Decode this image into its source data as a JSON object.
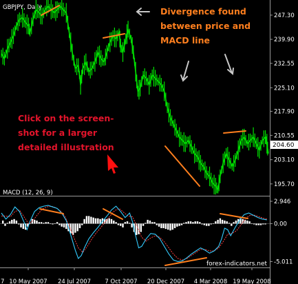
{
  "chart_data": [
    {
      "type": "line",
      "title": "GBPJPY, Daily",
      "series": [
        {
          "name": "GBPJPY",
          "color": "#00e000"
        }
      ],
      "ylim": [
        192.5,
        251.5
      ],
      "y_ticks": [
        "247.30",
        "239.90",
        "232.55",
        "225.10",
        "217.90",
        "210.55",
        "203.10",
        "195.70"
      ],
      "last_price": "204.60",
      "price_path": [
        [
          0,
          235.5
        ],
        [
          4,
          234
        ],
        [
          8,
          237
        ],
        [
          12,
          239
        ],
        [
          16,
          241
        ],
        [
          20,
          244
        ],
        [
          24,
          246
        ],
        [
          28,
          246.5
        ],
        [
          32,
          245
        ],
        [
          36,
          244
        ],
        [
          38,
          242
        ],
        [
          42,
          246
        ],
        [
          46,
          249
        ],
        [
          50,
          248
        ],
        [
          54,
          247
        ],
        [
          58,
          249
        ],
        [
          62,
          250
        ],
        [
          66,
          249
        ],
        [
          70,
          248
        ],
        [
          74,
          249
        ],
        [
          78,
          250
        ],
        [
          82,
          249
        ],
        [
          86,
          248
        ],
        [
          90,
          242
        ],
        [
          94,
          236
        ],
        [
          98,
          231
        ],
        [
          102,
          232
        ],
        [
          105,
          226
        ],
        [
          108,
          231
        ],
        [
          112,
          233
        ],
        [
          116,
          230
        ],
        [
          120,
          231
        ],
        [
          124,
          233
        ],
        [
          128,
          236
        ],
        [
          132,
          234
        ],
        [
          136,
          233
        ],
        [
          140,
          236
        ],
        [
          144,
          239
        ],
        [
          148,
          241
        ],
        [
          152,
          240
        ],
        [
          156,
          242
        ],
        [
          158,
          238
        ],
        [
          161,
          236
        ],
        [
          165,
          240
        ],
        [
          168,
          243
        ],
        [
          172,
          240
        ],
        [
          175,
          236
        ],
        [
          178,
          230
        ],
        [
          181,
          224
        ],
        [
          184,
          225
        ],
        [
          188,
          229
        ],
        [
          192,
          228
        ],
        [
          196,
          226
        ],
        [
          200,
          229
        ],
        [
          204,
          228
        ],
        [
          208,
          227
        ],
        [
          212,
          226
        ],
        [
          216,
          224
        ],
        [
          220,
          219
        ],
        [
          224,
          216
        ],
        [
          228,
          214
        ],
        [
          232,
          212
        ],
        [
          236,
          210
        ],
        [
          240,
          209
        ],
        [
          244,
          208
        ],
        [
          248,
          209
        ],
        [
          252,
          207
        ],
        [
          256,
          205
        ],
        [
          260,
          204
        ],
        [
          264,
          202
        ],
        [
          268,
          201
        ],
        [
          272,
          199
        ],
        [
          276,
          198
        ],
        [
          280,
          196
        ],
        [
          284,
          195
        ],
        [
          287,
          194
        ],
        [
          290,
          198
        ],
        [
          294,
          202
        ],
        [
          298,
          205
        ],
        [
          302,
          203
        ],
        [
          306,
          201
        ],
        [
          310,
          203
        ],
        [
          314,
          206
        ],
        [
          318,
          209
        ],
        [
          322,
          210
        ],
        [
          326,
          208
        ],
        [
          330,
          209
        ],
        [
          334,
          210
        ],
        [
          338,
          208
        ],
        [
          342,
          206
        ],
        [
          346,
          209
        ],
        [
          350,
          210
        ],
        [
          352,
          208
        ],
        [
          354,
          205
        ]
      ]
    },
    {
      "type": "line",
      "title": "MACD (12, 26, 9)",
      "series": [
        {
          "name": "MACD",
          "color": "#33ccff"
        },
        {
          "name": "Signal",
          "color": "#ff4040"
        },
        {
          "name": "Histogram",
          "color": "#ffffff"
        }
      ],
      "ylim": [
        -5.6,
        3.4
      ],
      "y_ticks": [
        "2.946",
        "0.00",
        "-5.011"
      ],
      "macd_path": [
        [
          0,
          1.4
        ],
        [
          6,
          0.6
        ],
        [
          12,
          1.2
        ],
        [
          18,
          2.2
        ],
        [
          24,
          1.6
        ],
        [
          30,
          0.2
        ],
        [
          34,
          -0.8
        ],
        [
          38,
          0.3
        ],
        [
          44,
          1.6
        ],
        [
          50,
          2.1
        ],
        [
          56,
          2.3
        ],
        [
          62,
          2.4
        ],
        [
          68,
          2.2
        ],
        [
          74,
          2.0
        ],
        [
          80,
          1.4
        ],
        [
          86,
          0.4
        ],
        [
          92,
          -1.5
        ],
        [
          98,
          -3.5
        ],
        [
          102,
          -4.6
        ],
        [
          106,
          -4.2
        ],
        [
          110,
          -3.2
        ],
        [
          116,
          -2.0
        ],
        [
          122,
          -1.2
        ],
        [
          128,
          -0.5
        ],
        [
          134,
          0.3
        ],
        [
          140,
          1.0
        ],
        [
          146,
          1.8
        ],
        [
          152,
          2.3
        ],
        [
          158,
          1.6
        ],
        [
          164,
          0.8
        ],
        [
          170,
          1.4
        ],
        [
          174,
          0.2
        ],
        [
          178,
          -1.6
        ],
        [
          182,
          -3.2
        ],
        [
          186,
          -3.0
        ],
        [
          192,
          -2.0
        ],
        [
          198,
          -1.3
        ],
        [
          204,
          -1.4
        ],
        [
          210,
          -2.0
        ],
        [
          216,
          -3.0
        ],
        [
          222,
          -4.0
        ],
        [
          228,
          -4.8
        ],
        [
          234,
          -5.0
        ],
        [
          240,
          -4.9
        ],
        [
          246,
          -4.5
        ],
        [
          252,
          -4.0
        ],
        [
          258,
          -3.6
        ],
        [
          264,
          -3.2
        ],
        [
          270,
          -3.5
        ],
        [
          276,
          -3.9
        ],
        [
          282,
          -3.6
        ],
        [
          288,
          -3.0
        ],
        [
          292,
          -2.0
        ],
        [
          296,
          -0.6
        ],
        [
          300,
          -0.8
        ],
        [
          304,
          -1.6
        ],
        [
          310,
          -0.5
        ],
        [
          316,
          0.5
        ],
        [
          322,
          1.2
        ],
        [
          328,
          1.4
        ],
        [
          334,
          1.1
        ],
        [
          340,
          0.8
        ],
        [
          346,
          0.6
        ],
        [
          352,
          0.5
        ]
      ],
      "signal_path": [
        [
          0,
          1.0
        ],
        [
          6,
          1.0
        ],
        [
          12,
          0.9
        ],
        [
          18,
          1.6
        ],
        [
          24,
          1.8
        ],
        [
          30,
          0.9
        ],
        [
          36,
          0.0
        ],
        [
          42,
          0.4
        ],
        [
          48,
          1.2
        ],
        [
          54,
          1.9
        ],
        [
          60,
          2.2
        ],
        [
          66,
          2.3
        ],
        [
          72,
          2.1
        ],
        [
          78,
          1.7
        ],
        [
          84,
          1.0
        ],
        [
          90,
          -0.3
        ],
        [
          96,
          -1.8
        ],
        [
          102,
          -3.2
        ],
        [
          108,
          -3.8
        ],
        [
          114,
          -3.0
        ],
        [
          120,
          -2.0
        ],
        [
          126,
          -1.2
        ],
        [
          132,
          -0.5
        ],
        [
          138,
          0.3
        ],
        [
          144,
          1.0
        ],
        [
          150,
          1.7
        ],
        [
          156,
          2.0
        ],
        [
          162,
          1.5
        ],
        [
          168,
          1.0
        ],
        [
          174,
          0.9
        ],
        [
          180,
          -0.4
        ],
        [
          186,
          -1.8
        ],
        [
          192,
          -2.3
        ],
        [
          198,
          -1.9
        ],
        [
          204,
          -1.6
        ],
        [
          210,
          -1.8
        ],
        [
          216,
          -2.4
        ],
        [
          222,
          -3.2
        ],
        [
          228,
          -4.0
        ],
        [
          234,
          -4.6
        ],
        [
          240,
          -4.8
        ],
        [
          246,
          -4.6
        ],
        [
          252,
          -4.2
        ],
        [
          258,
          -3.8
        ],
        [
          264,
          -3.4
        ],
        [
          270,
          -3.4
        ],
        [
          276,
          -3.6
        ],
        [
          282,
          -3.6
        ],
        [
          288,
          -3.2
        ],
        [
          294,
          -2.4
        ],
        [
          300,
          -1.4
        ],
        [
          306,
          -1.3
        ],
        [
          312,
          -0.9
        ],
        [
          318,
          -0.1
        ],
        [
          324,
          0.7
        ],
        [
          330,
          1.1
        ],
        [
          336,
          1.1
        ],
        [
          342,
          0.9
        ],
        [
          348,
          0.7
        ],
        [
          352,
          0.6
        ]
      ],
      "histogram": [
        [
          2,
          0.4
        ],
        [
          5,
          -0.3
        ],
        [
          8,
          0.1
        ],
        [
          11,
          0.3
        ],
        [
          14,
          0.5
        ],
        [
          17,
          0.6
        ],
        [
          20,
          0.4
        ],
        [
          23,
          -0.1
        ],
        [
          26,
          -0.5
        ],
        [
          29,
          -0.7
        ],
        [
          32,
          -0.8
        ],
        [
          35,
          -0.4
        ],
        [
          38,
          0.0
        ],
        [
          41,
          0.6
        ],
        [
          44,
          0.5
        ],
        [
          47,
          0.4
        ],
        [
          50,
          0.2
        ],
        [
          53,
          0.2
        ],
        [
          56,
          0.1
        ],
        [
          59,
          0.2
        ],
        [
          62,
          0.2
        ],
        [
          65,
          0.0
        ],
        [
          68,
          -0.1
        ],
        [
          71,
          0.0
        ],
        [
          74,
          0.2
        ],
        [
          77,
          -0.2
        ],
        [
          80,
          -0.4
        ],
        [
          83,
          -0.5
        ],
        [
          86,
          -0.7
        ],
        [
          89,
          -1.0
        ],
        [
          92,
          -1.3
        ],
        [
          95,
          -1.5
        ],
        [
          98,
          -1.2
        ],
        [
          101,
          -1.0
        ],
        [
          104,
          -0.6
        ],
        [
          107,
          -0.2
        ],
        [
          110,
          0.6
        ],
        [
          113,
          1.0
        ],
        [
          116,
          1.0
        ],
        [
          119,
          0.9
        ],
        [
          122,
          0.8
        ],
        [
          125,
          0.7
        ],
        [
          128,
          0.7
        ],
        [
          131,
          0.6
        ],
        [
          134,
          0.7
        ],
        [
          137,
          0.6
        ],
        [
          140,
          0.6
        ],
        [
          143,
          0.7
        ],
        [
          146,
          0.6
        ],
        [
          149,
          0.4
        ],
        [
          152,
          0.2
        ],
        [
          155,
          -0.2
        ],
        [
          158,
          -0.3
        ],
        [
          161,
          -0.5
        ],
        [
          164,
          0.2
        ],
        [
          167,
          0.3
        ],
        [
          170,
          0.1
        ],
        [
          173,
          -0.5
        ],
        [
          176,
          -1.1
        ],
        [
          179,
          -1.5
        ],
        [
          182,
          -1.4
        ],
        [
          185,
          -1.1
        ],
        [
          188,
          -0.3
        ],
        [
          191,
          0.1
        ],
        [
          194,
          0.5
        ],
        [
          197,
          0.4
        ],
        [
          200,
          0.2
        ],
        [
          203,
          0.2
        ],
        [
          206,
          -0.2
        ],
        [
          209,
          -0.4
        ],
        [
          212,
          -0.6
        ],
        [
          215,
          -0.6
        ],
        [
          218,
          -0.7
        ],
        [
          221,
          -0.8
        ],
        [
          224,
          -0.9
        ],
        [
          227,
          -0.8
        ],
        [
          230,
          -0.6
        ],
        [
          233,
          -0.4
        ],
        [
          236,
          -0.3
        ],
        [
          239,
          -0.2
        ],
        [
          242,
          0.1
        ],
        [
          245,
          0.2
        ],
        [
          248,
          0.3
        ],
        [
          251,
          0.3
        ],
        [
          254,
          0.2
        ],
        [
          257,
          0.3
        ],
        [
          260,
          0.3
        ],
        [
          263,
          0.2
        ],
        [
          266,
          -0.1
        ],
        [
          269,
          -0.2
        ],
        [
          272,
          -0.3
        ],
        [
          275,
          -0.3
        ],
        [
          278,
          -0.1
        ],
        [
          281,
          0.0
        ],
        [
          284,
          0.3
        ],
        [
          287,
          0.5
        ],
        [
          290,
          0.7
        ],
        [
          293,
          0.5
        ],
        [
          296,
          0.4
        ],
        [
          299,
          0.3
        ],
        [
          302,
          0.1
        ],
        [
          305,
          -0.3
        ],
        [
          308,
          0.2
        ],
        [
          311,
          0.4
        ],
        [
          314,
          0.6
        ],
        [
          317,
          0.7
        ],
        [
          320,
          0.6
        ],
        [
          323,
          0.5
        ],
        [
          326,
          0.4
        ],
        [
          329,
          0.3
        ],
        [
          332,
          0.0
        ],
        [
          335,
          -0.1
        ],
        [
          338,
          -0.2
        ],
        [
          341,
          -0.2
        ],
        [
          344,
          -0.2
        ],
        [
          347,
          -0.1
        ],
        [
          350,
          -0.1
        ]
      ]
    }
  ],
  "x_ticks": [
    "10 May 2007",
    "24 Jul 2007",
    "7 Oct 2007",
    "20 Dec 2007",
    "4 Mar 2008",
    "19 May 2008"
  ],
  "annotations": {
    "divergence_lines": [
      "Divergence found",
      "between price and",
      "MACD line"
    ],
    "click_lines": [
      "Click on the screen-",
      "shot for a larger",
      "detailed illustration"
    ],
    "watermark": "forex-indicators.net"
  },
  "colors": {
    "background": "#000000",
    "price": "#00e000",
    "divergence": "#ff7f1e",
    "click_note": "#e3142b",
    "arrow": "#c8c8c8",
    "pointer": "#ff0000"
  }
}
